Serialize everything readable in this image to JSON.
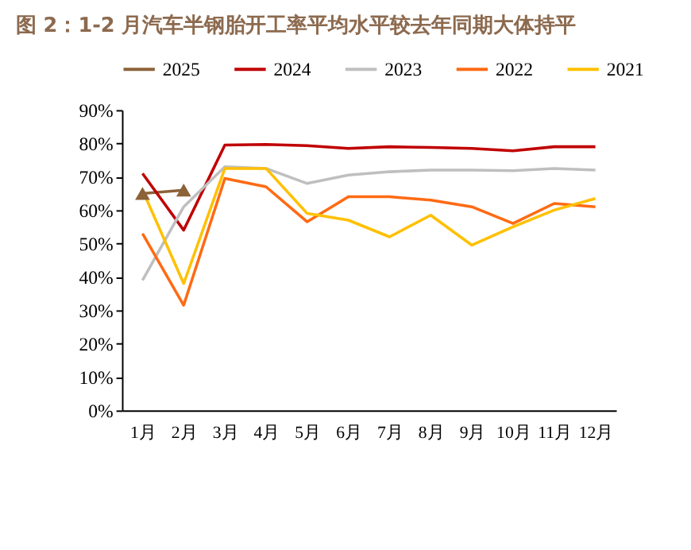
{
  "chart_data": {
    "type": "line",
    "title": "图 2：1-2 月汽车半钢胎开工率平均水平较去年同期大体持平",
    "categories": [
      "1月",
      "2月",
      "3月",
      "4月",
      "5月",
      "6月",
      "7月",
      "8月",
      "9月",
      "10月",
      "11月",
      "12月"
    ],
    "series": [
      {
        "name": "2025",
        "color": "#8c6239",
        "marker": "triangle",
        "values": [
          65,
          66,
          null,
          null,
          null,
          null,
          null,
          null,
          null,
          null,
          null,
          null
        ]
      },
      {
        "name": "2024",
        "color": "#c00000",
        "marker": "none",
        "values": [
          71,
          54,
          79.5,
          79.7,
          79.3,
          78.5,
          79,
          78.8,
          78.5,
          77.8,
          79,
          79
        ]
      },
      {
        "name": "2023",
        "color": "#bfbfbf",
        "marker": "none",
        "values": [
          39,
          61,
          73,
          72.5,
          68,
          70.5,
          71.5,
          72,
          72,
          71.8,
          72.5,
          72
        ]
      },
      {
        "name": "2022",
        "color": "#ff6a13",
        "marker": "none",
        "values": [
          53,
          31.5,
          69.5,
          67,
          56.5,
          64,
          64,
          63,
          61,
          56,
          62,
          61
        ]
      },
      {
        "name": "2021",
        "color": "#ffc000",
        "marker": "none",
        "values": [
          66,
          38,
          72.5,
          72.5,
          59,
          57,
          52,
          58.5,
          49.5,
          55,
          60,
          63.5
        ]
      }
    ],
    "ylim": [
      0,
      90
    ],
    "yticks": [
      {
        "value": 0,
        "label": "0%"
      },
      {
        "value": 10,
        "label": "10%"
      },
      {
        "value": 20,
        "label": "20%"
      },
      {
        "value": 30,
        "label": "30%"
      },
      {
        "value": 40,
        "label": "40%"
      },
      {
        "value": 50,
        "label": "50%"
      },
      {
        "value": 60,
        "label": "60%"
      },
      {
        "value": 70,
        "label": "70%"
      },
      {
        "value": 80,
        "label": "80%"
      },
      {
        "value": 90,
        "label": "90%"
      }
    ],
    "grid": false,
    "legend": "top",
    "line_style": "solid"
  }
}
